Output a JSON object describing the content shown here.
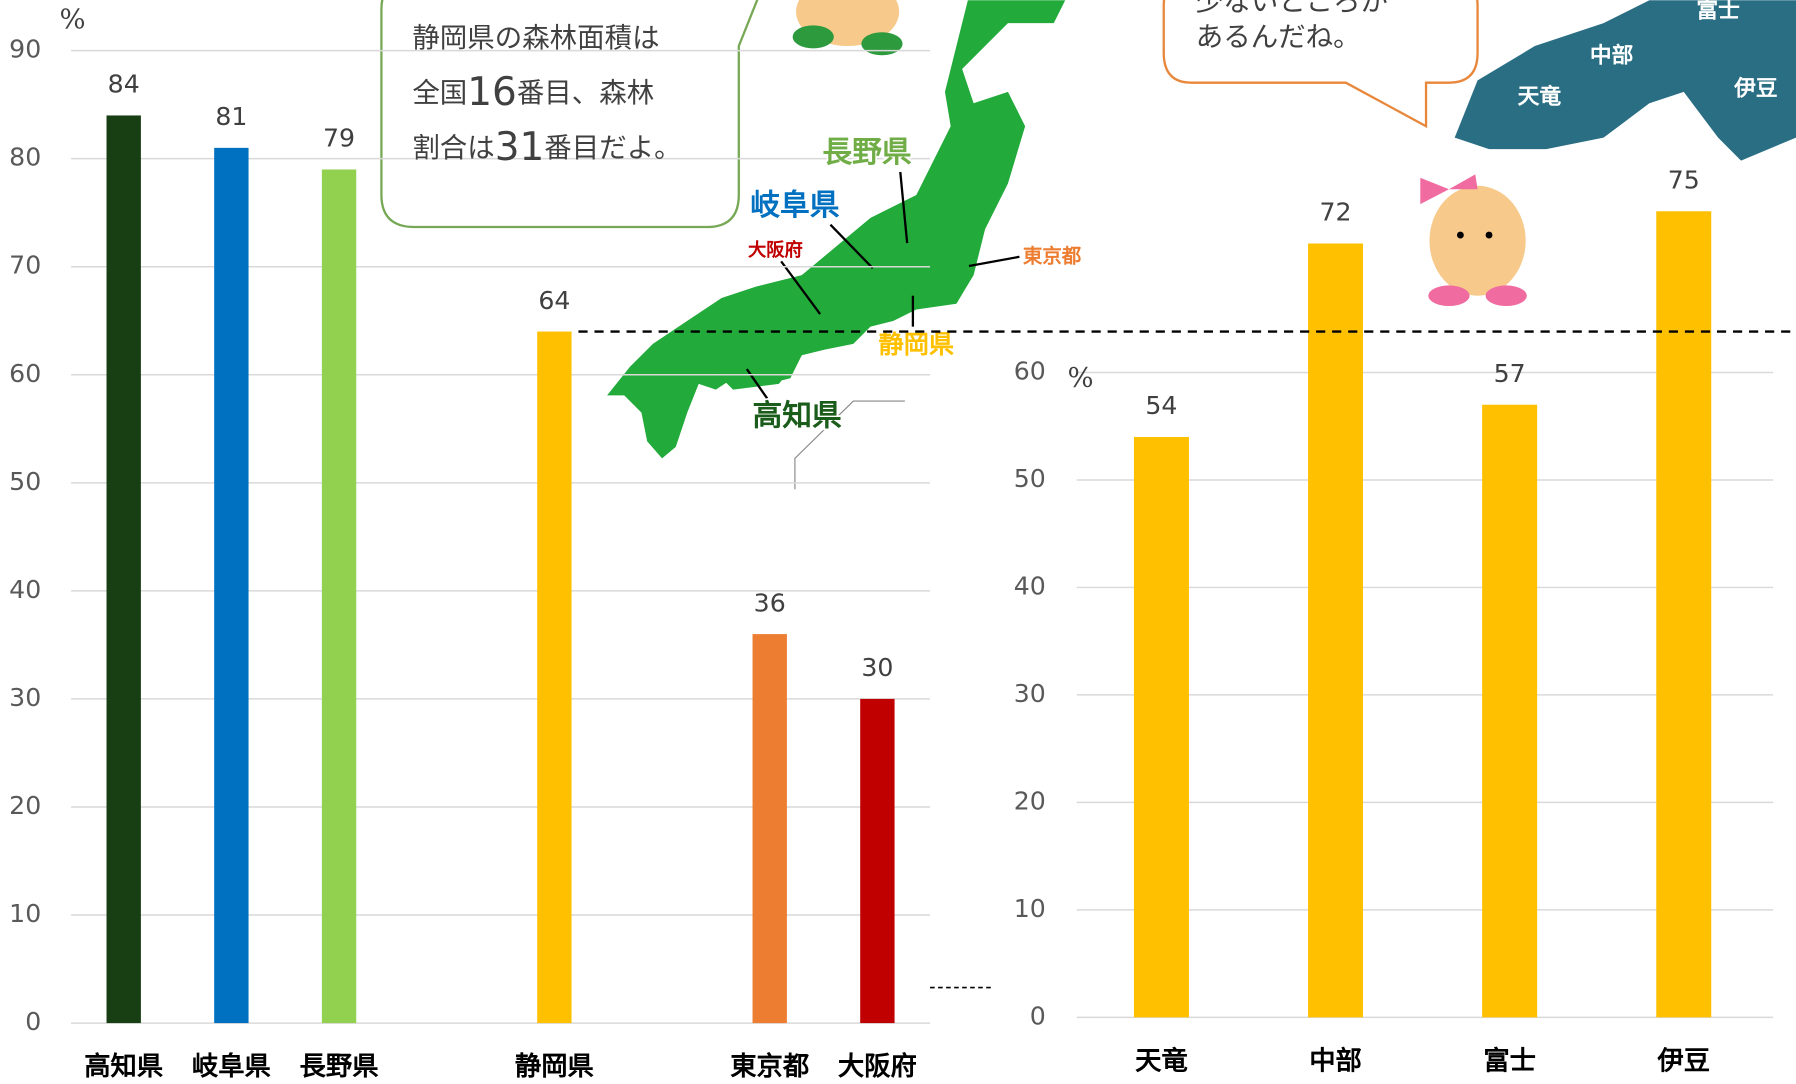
{
  "chart_data": [
    {
      "type": "bar",
      "y_unit": "%",
      "categories": [
        "高知県",
        "岐阜県",
        "長野県",
        null,
        "静岡県",
        null,
        "東京都",
        "大阪府"
      ],
      "values": [
        84,
        81,
        79,
        null,
        64,
        null,
        36,
        30
      ],
      "colors": [
        "#173f13",
        "#0070c0",
        "#92d050",
        null,
        "#ffc000",
        null,
        "#ed7d31",
        "#c00000"
      ],
      "ylim": [
        0,
        90
      ],
      "yticks": [
        0,
        10,
        20,
        30,
        40,
        50,
        60,
        70,
        80,
        90
      ],
      "grid": true
    },
    {
      "type": "bar",
      "y_unit": "%",
      "categories": [
        "天竜",
        "中部",
        "富士",
        "伊豆"
      ],
      "values": [
        54,
        72,
        57,
        75
      ],
      "colors": [
        "#ffc000",
        "#ffc000",
        "#ffc000",
        "#ffc000"
      ],
      "ylim": [
        0,
        80
      ],
      "yticks": [
        0,
        10,
        20,
        30,
        40,
        50,
        60
      ],
      "grid": true
    }
  ],
  "bubble_left": [
    [
      "静岡県の森林面積は"
    ],
    [
      "全国",
      "16",
      "番目、森林"
    ],
    [
      "割合は",
      "31",
      "番目だよ。"
    ]
  ],
  "bubble_right": [
    "少ないところが",
    "あるんだね。"
  ],
  "map_labels": [
    "長野県",
    "岐阜県",
    "大阪府",
    "東京都",
    "静岡県",
    "高知県"
  ],
  "region_labels": [
    "富士",
    "中部",
    "天竜",
    "伊豆"
  ]
}
